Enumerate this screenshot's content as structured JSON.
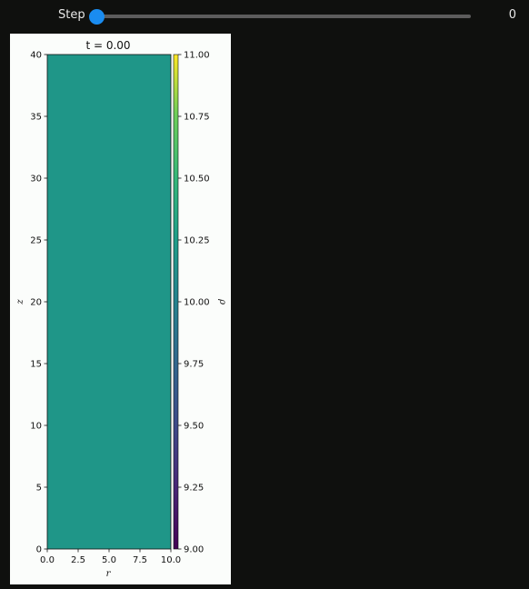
{
  "controls": {
    "step_label": "Step",
    "step_value": "0",
    "step_fraction": 0.0
  },
  "colors": {
    "background": "#0f100e",
    "slider_thumb": "#1a8cf0",
    "slider_track": "#5c5c5c",
    "field_fill": "#1f9688"
  },
  "chart_data": {
    "type": "heatmap",
    "title": "t = 0.00",
    "xlabel": "r",
    "ylabel": "z",
    "colorbar_label": "ρ",
    "xlim": [
      0,
      10
    ],
    "ylim": [
      0,
      40
    ],
    "x_ticks": [
      "0.0",
      "2.5",
      "5.0",
      "7.5",
      "10.0"
    ],
    "y_ticks": [
      "0",
      "5",
      "10",
      "15",
      "20",
      "25",
      "30",
      "35",
      "40"
    ],
    "colorbar_range": [
      9.0,
      11.0
    ],
    "colorbar_ticks": [
      "9.00",
      "9.25",
      "9.50",
      "9.75",
      "10.00",
      "10.25",
      "10.50",
      "10.75",
      "11.00"
    ],
    "colormap": "viridis",
    "field_value": 10.0
  }
}
